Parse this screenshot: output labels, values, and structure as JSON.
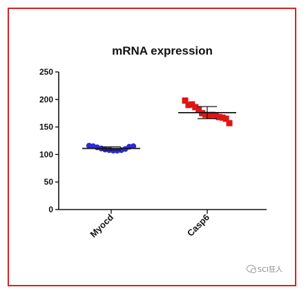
{
  "chart_data": {
    "type": "scatter",
    "title": "mRNA expression",
    "categories": [
      "Myocd",
      "Casp6"
    ],
    "ylim": [
      0,
      250
    ],
    "yticks": [
      0,
      50,
      100,
      150,
      200,
      250
    ],
    "grid": false,
    "series": [
      {
        "category": "Myocd",
        "color": "#2b2bd9",
        "marker": "circle",
        "values": [
          116,
          115,
          113,
          111,
          109,
          108,
          107,
          107,
          108,
          110,
          114,
          115
        ],
        "mean": 111,
        "sd": 3
      },
      {
        "category": "Casp6",
        "color": "#e01515",
        "marker": "square",
        "values": [
          198,
          190,
          191,
          186,
          181,
          175,
          172,
          171,
          172,
          170,
          168,
          167,
          165,
          157
        ],
        "mean": 176,
        "sd": 11
      }
    ]
  },
  "watermark": {
    "text": "SCI狂人"
  }
}
